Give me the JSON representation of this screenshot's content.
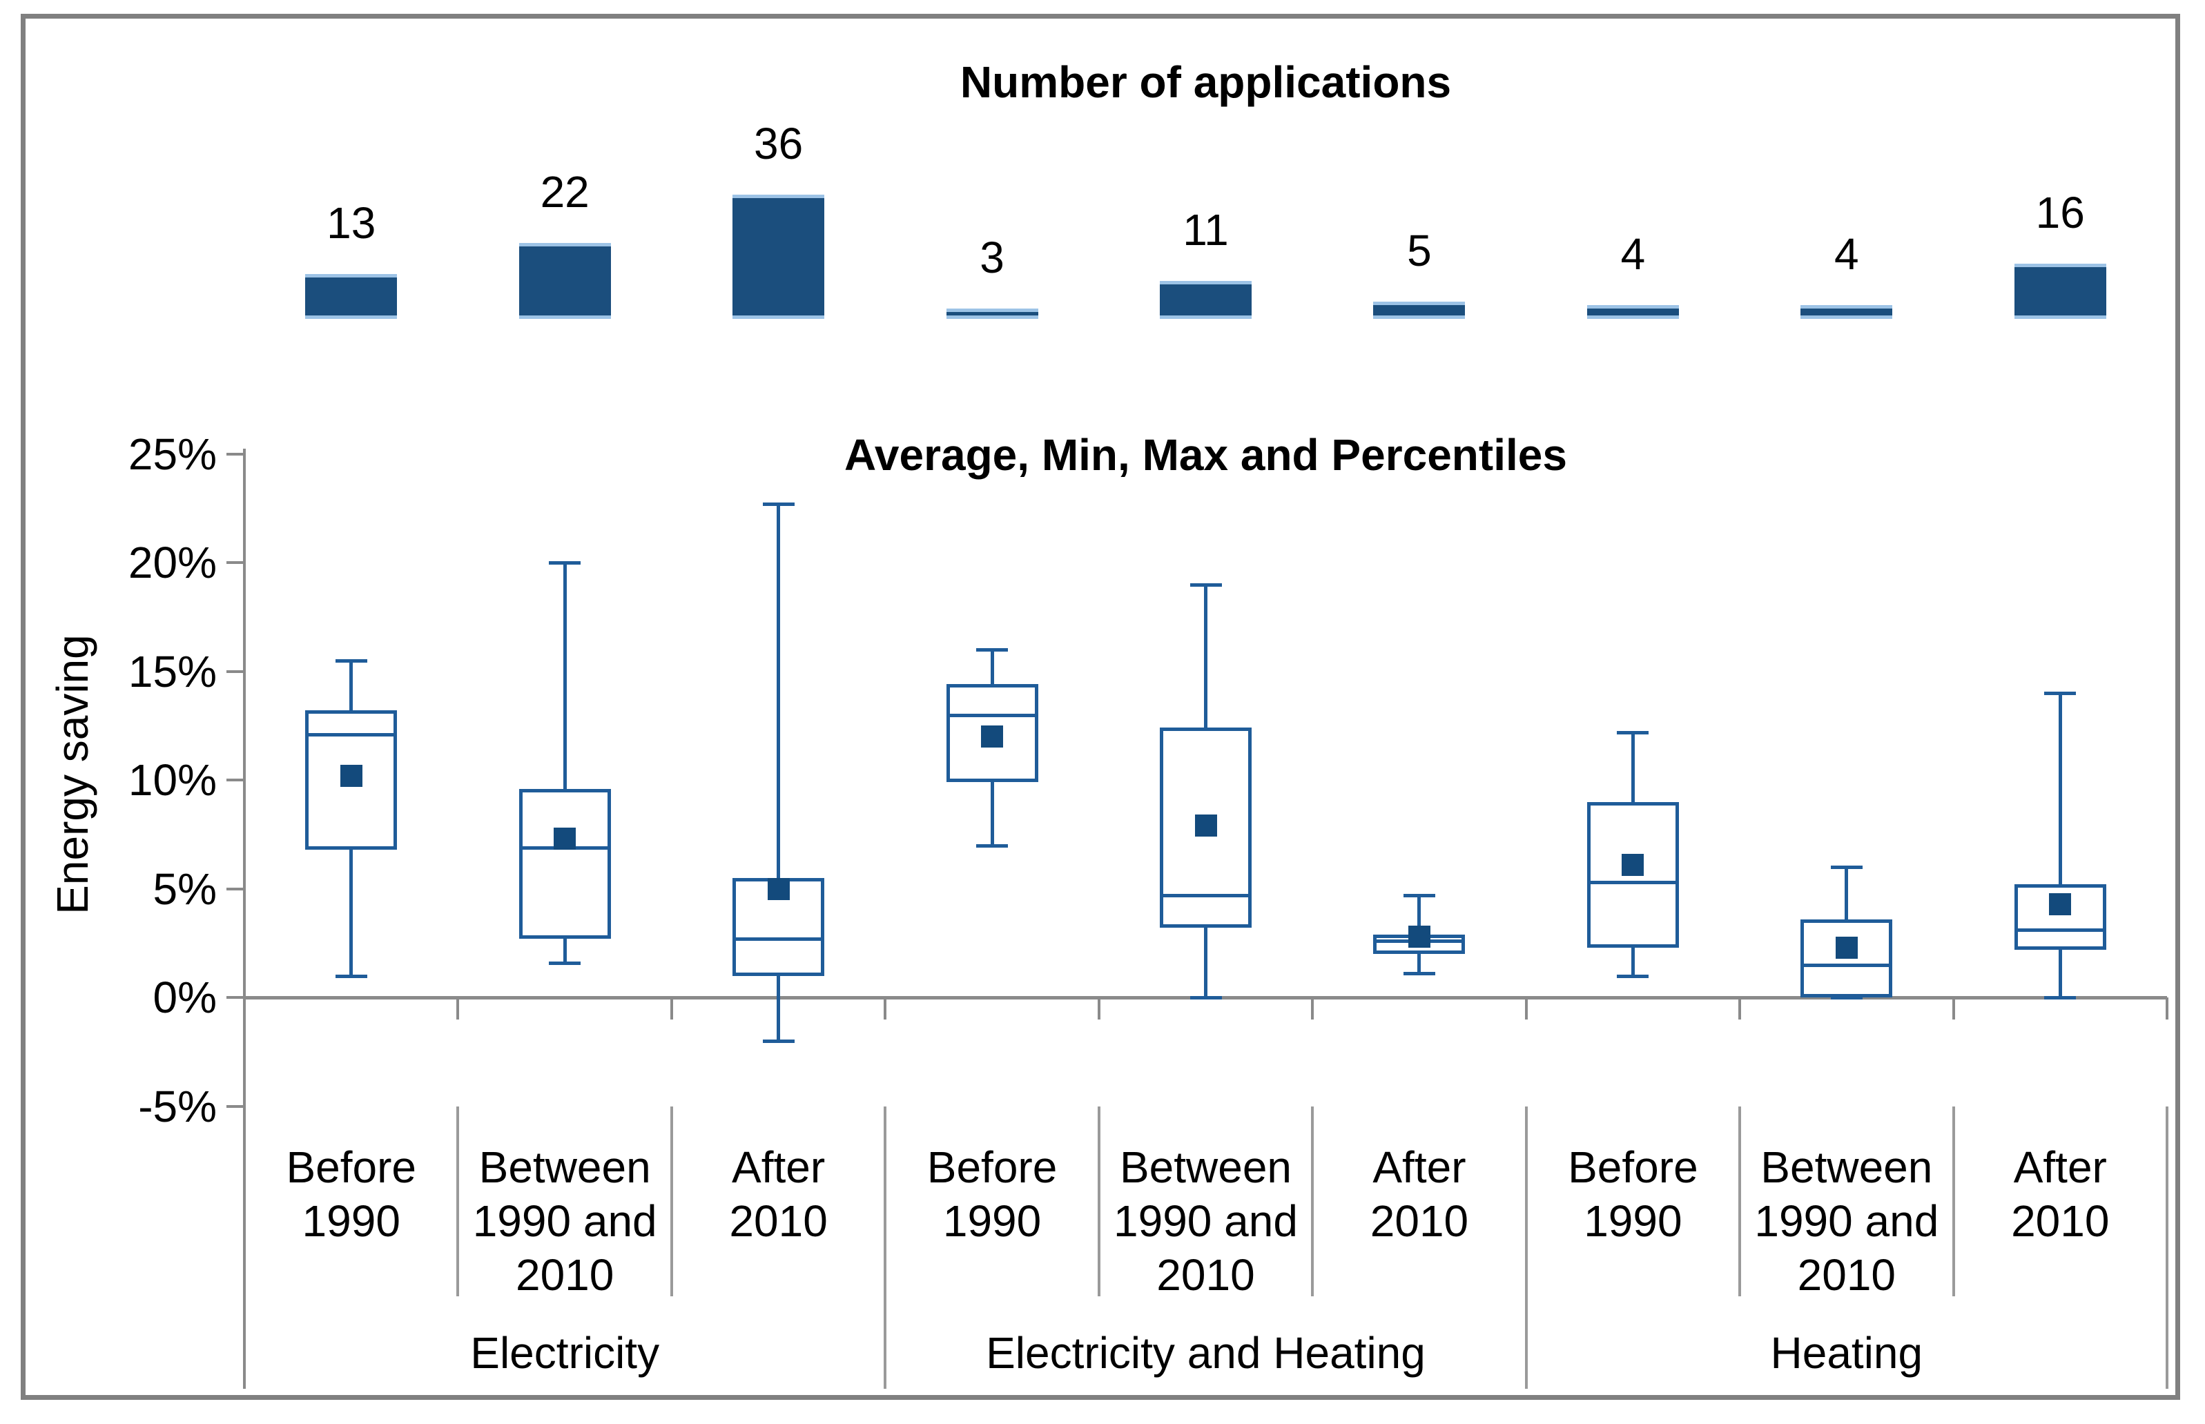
{
  "figure": {
    "bar_title": "Number of applications",
    "box_title": "Average, Min, Max and Percentiles",
    "y_axis_label": "Energy saving"
  },
  "colors": {
    "bar_fill": "#1B4E7D",
    "bar_edge": "#9DC3E6",
    "box_line": "#1F5C99",
    "mean_fill": "#134A7C",
    "axis_gray": "#8A8A8A",
    "separator_gray": "#9A9A9A",
    "text": "#000000",
    "frame_gray": "#808080"
  },
  "x_axis": {
    "period_label_lines": [
      [
        "Before",
        "1990"
      ],
      [
        "Between",
        "1990 and",
        "2010"
      ],
      [
        "After",
        "2010"
      ]
    ],
    "group_labels": [
      "Electricity",
      "Electricity and Heating",
      "Heating"
    ]
  },
  "chart_data": [
    {
      "type": "bar",
      "title": "Number of applications",
      "categories": [
        "Electricity / Before 1990",
        "Electricity / Between 1990 and 2010",
        "Electricity / After 2010",
        "Electricity and Heating / Before 1990",
        "Electricity and Heating / Between 1990 and 2010",
        "Electricity and Heating / After 2010",
        "Heating / Before 1990",
        "Heating / Between 1990 and 2010",
        "Heating / After 2010"
      ],
      "values": [
        13,
        22,
        36,
        3,
        11,
        5,
        4,
        4,
        16
      ],
      "data_labels_shown": true,
      "legend": "none"
    },
    {
      "type": "box",
      "title": "Average, Min, Max and Percentiles",
      "ylabel": "Energy saving",
      "ylim": [
        -5,
        25
      ],
      "yticks": [
        {
          "v": 25,
          "label": "25%"
        },
        {
          "v": 20,
          "label": "20%"
        },
        {
          "v": 15,
          "label": "15%"
        },
        {
          "v": 10,
          "label": "10%"
        },
        {
          "v": 5,
          "label": "5%"
        },
        {
          "v": 0,
          "label": "0%"
        },
        {
          "v": -5,
          "label": "-5%"
        }
      ],
      "grid": "off",
      "legend": "none",
      "units": "percent energy saving",
      "groups": [
        {
          "label": "Electricity",
          "boxes": [
            {
              "period": "Before 1990",
              "n": 13,
              "min": 1.0,
              "q1": 6.8,
              "median": 12.1,
              "q3": 13.2,
              "max": 15.5,
              "mean": 10.2
            },
            {
              "period": "Between 1990 and 2010",
              "n": 22,
              "min": 1.6,
              "q1": 2.7,
              "median": 6.9,
              "q3": 9.6,
              "max": 20.0,
              "mean": 7.3
            },
            {
              "period": "After 2010",
              "n": 36,
              "min": -2.0,
              "q1": 1.0,
              "median": 2.7,
              "q3": 5.5,
              "max": 22.7,
              "mean": 5.0
            }
          ]
        },
        {
          "label": "Electricity and Heating",
          "boxes": [
            {
              "period": "Before 1990",
              "n": 3,
              "min": 7.0,
              "q1": 9.9,
              "median": 13.0,
              "q3": 14.4,
              "max": 16.0,
              "mean": 12.0
            },
            {
              "period": "Between 1990 and 2010",
              "n": 11,
              "min": 0.0,
              "q1": 3.2,
              "median": 4.7,
              "q3": 12.4,
              "max": 19.0,
              "mean": 7.9
            },
            {
              "period": "After 2010",
              "n": 5,
              "min": 1.1,
              "q1": 2.0,
              "median": 2.6,
              "q3": 2.9,
              "max": 4.7,
              "mean": 2.8
            }
          ]
        },
        {
          "label": "Heating",
          "boxes": [
            {
              "period": "Before 1990",
              "n": 4,
              "min": 1.0,
              "q1": 2.3,
              "median": 5.3,
              "q3": 9.0,
              "max": 12.2,
              "mean": 6.1
            },
            {
              "period": "Between 1990 and 2010",
              "n": 4,
              "min": 0.0,
              "q1": 0.0,
              "median": 1.5,
              "q3": 3.6,
              "max": 6.0,
              "mean": 2.3
            },
            {
              "period": "After 2010",
              "n": 16,
              "min": 0.0,
              "q1": 2.2,
              "median": 3.1,
              "q3": 5.2,
              "max": 14.0,
              "mean": 4.3
            }
          ]
        }
      ]
    }
  ]
}
